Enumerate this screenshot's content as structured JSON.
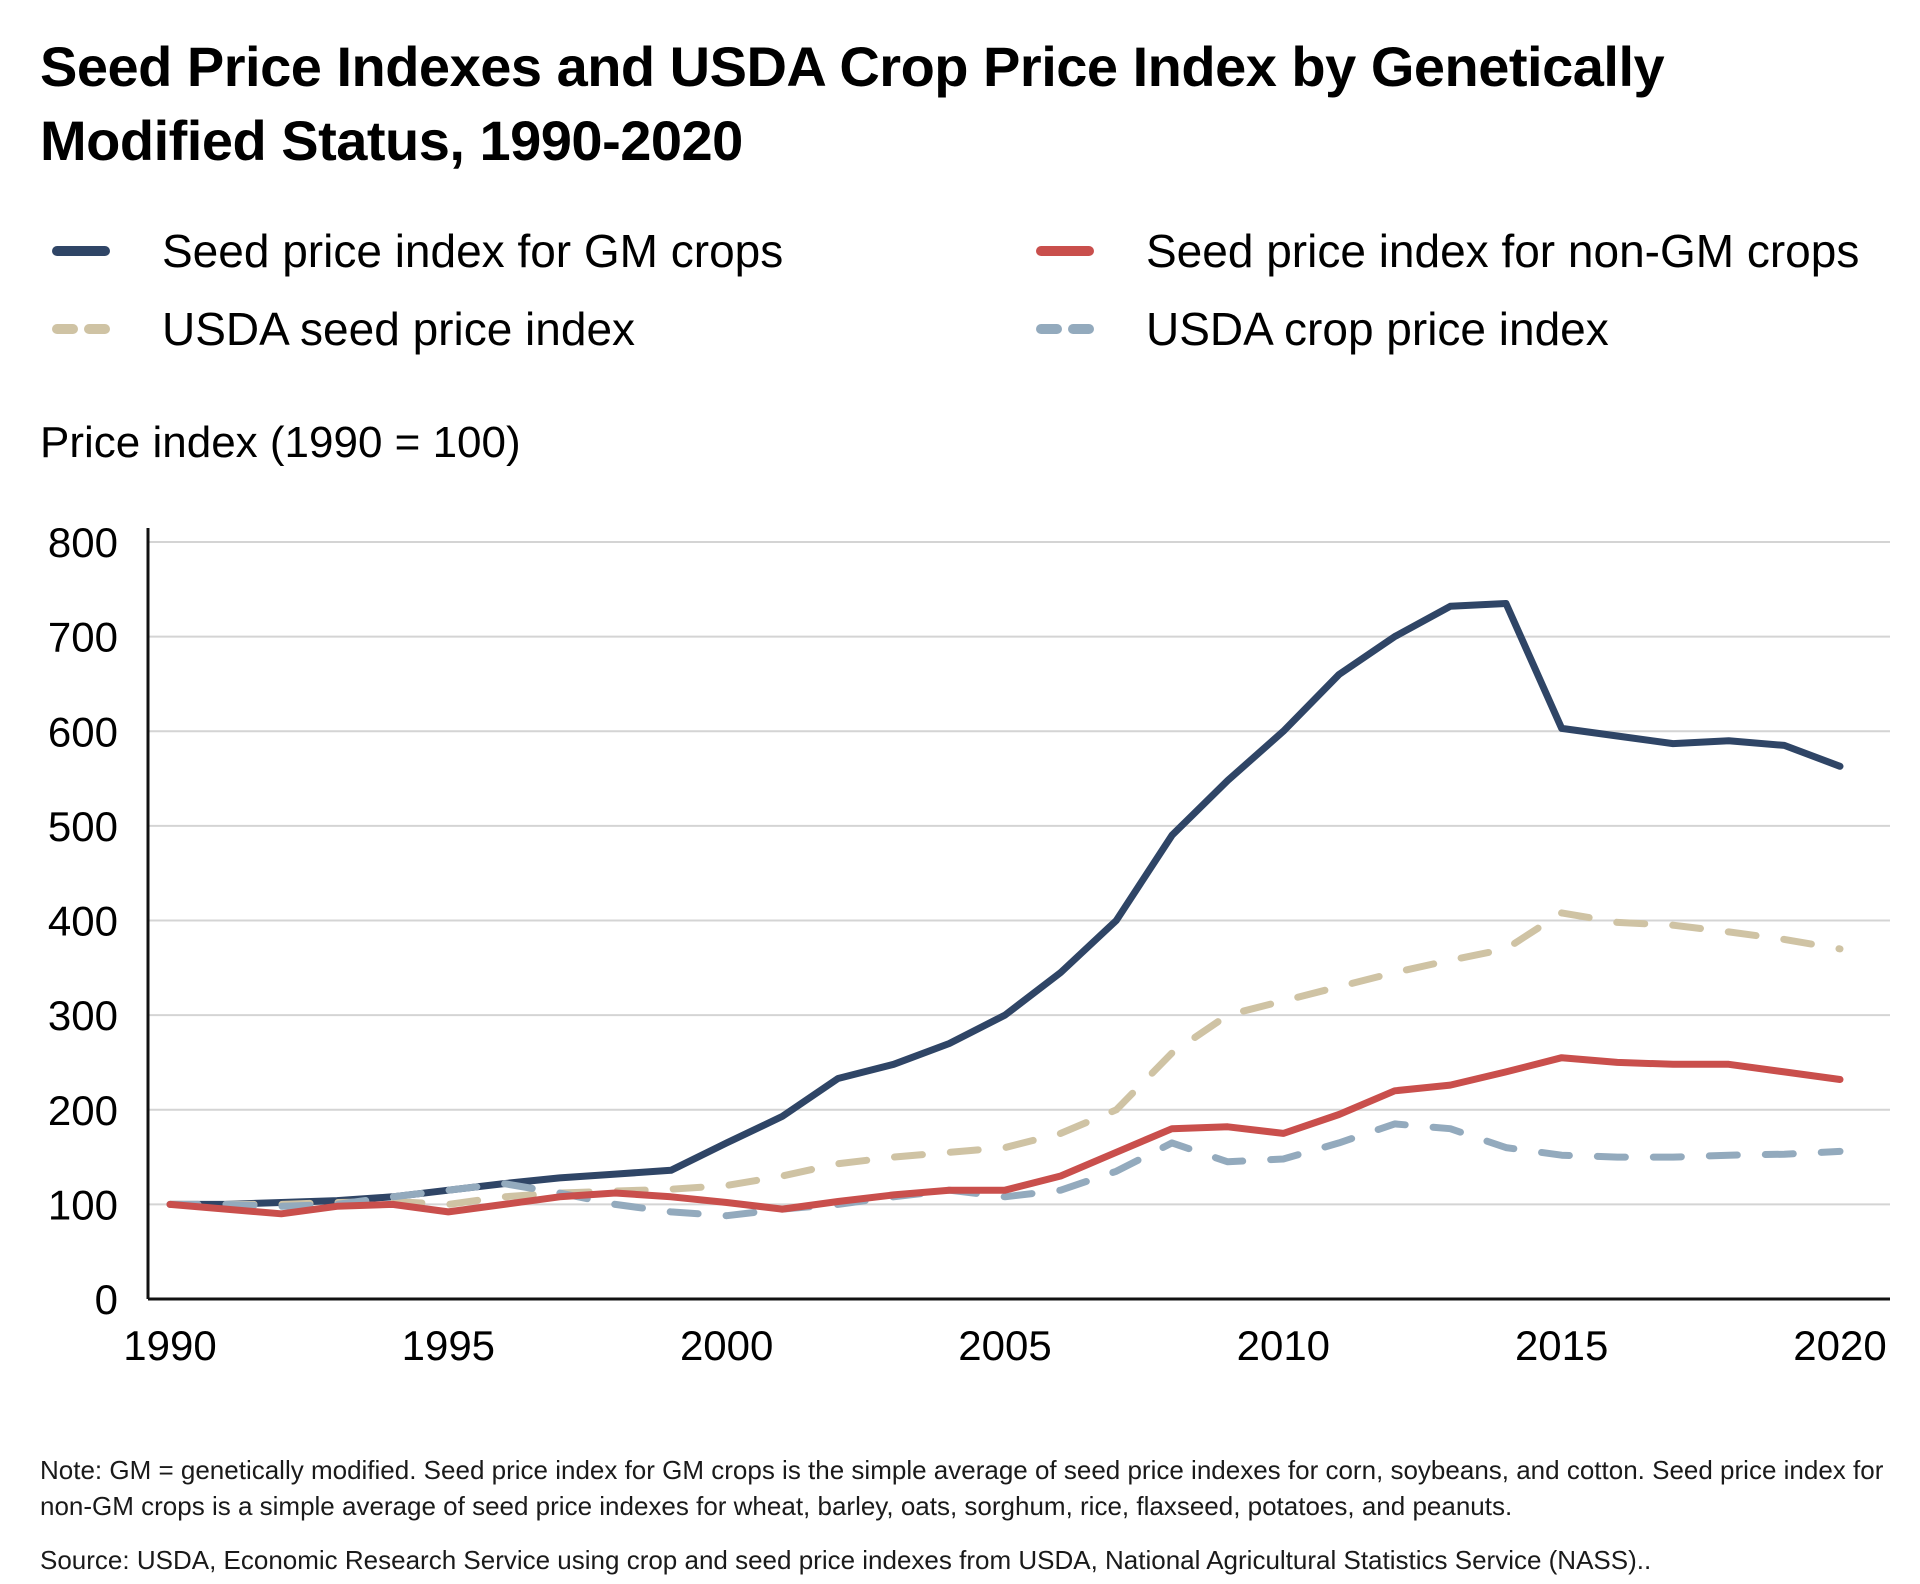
{
  "title": "Seed Price Indexes and USDA Crop Price Index by Genetically Modified Status, 1990-2020",
  "legend": [
    {
      "label": "Seed price index for GM crops",
      "color": "#2f4566",
      "style": "solid"
    },
    {
      "label": "Seed price index for non-GM crops",
      "color": "#c94f4c",
      "style": "solid"
    },
    {
      "label": "USDA seed price index",
      "color": "#cfc3a4",
      "style": "dashed"
    },
    {
      "label": "USDA crop price index",
      "color": "#93aabd",
      "style": "dashed"
    }
  ],
  "note": "Note: GM = genetically modified. Seed price index for GM crops is the simple average of seed price indexes for corn, soybeans, and cotton. Seed price index for non-GM crops is a simple average of seed price indexes for wheat, barley, oats, sorghum, rice, flaxseed, potatoes, and peanuts.",
  "source": "Source: USDA, Economic Research Service using crop and seed price indexes from USDA, National Agricultural Statistics Service (NASS)..",
  "chart_data": {
    "type": "line",
    "title": "Seed Price Indexes and USDA Crop Price Index by Genetically Modified Status, 1990-2020",
    "xlabel": "",
    "ylabel": "Price index (1990 = 100)",
    "x": [
      1990,
      1991,
      1992,
      1993,
      1994,
      1995,
      1996,
      1997,
      1998,
      1999,
      2000,
      2001,
      2002,
      2003,
      2004,
      2005,
      2006,
      2007,
      2008,
      2009,
      2010,
      2011,
      2012,
      2013,
      2014,
      2015,
      2016,
      2017,
      2018,
      2019,
      2020
    ],
    "xticks": [
      "1990",
      "1995",
      "2000",
      "2005",
      "2010",
      "2015",
      "2020"
    ],
    "xtick_values": [
      1990,
      1995,
      2000,
      2005,
      2010,
      2015,
      2020
    ],
    "yticks": [
      "0",
      "100",
      "200",
      "300",
      "400",
      "500",
      "600",
      "700",
      "800"
    ],
    "ytick_values": [
      0,
      100,
      200,
      300,
      400,
      500,
      600,
      700,
      800
    ],
    "xlim": [
      1990,
      2020
    ],
    "ylim": [
      0,
      800
    ],
    "grid": true,
    "legend_position": "top",
    "series": [
      {
        "name": "Seed price index for GM crops",
        "color": "#2f4566",
        "dashed": false,
        "values": [
          100,
          100,
          102,
          104,
          108,
          115,
          122,
          128,
          132,
          136,
          165,
          193,
          233,
          248,
          270,
          300,
          345,
          400,
          490,
          548,
          600,
          660,
          700,
          732,
          735,
          603,
          595,
          587,
          590,
          585,
          563
        ]
      },
      {
        "name": "USDA seed price index",
        "color": "#cfc3a4",
        "dashed": true,
        "values": [
          100,
          100,
          100,
          102,
          103,
          100,
          108,
          112,
          114,
          116,
          120,
          130,
          143,
          150,
          155,
          160,
          175,
          200,
          260,
          300,
          315,
          330,
          345,
          358,
          370,
          408,
          398,
          395,
          388,
          380,
          370
        ]
      },
      {
        "name": "USDA crop price index",
        "color": "#93aabd",
        "dashed": true,
        "values": [
          100,
          100,
          98,
          100,
          108,
          115,
          122,
          112,
          100,
          92,
          88,
          95,
          100,
          108,
          115,
          108,
          115,
          135,
          165,
          145,
          148,
          165,
          185,
          180,
          160,
          152,
          150,
          150,
          152,
          153,
          156
        ]
      },
      {
        "name": "Seed price index for non-GM crops",
        "color": "#c94f4c",
        "dashed": false,
        "values": [
          100,
          95,
          90,
          98,
          100,
          92,
          100,
          108,
          112,
          108,
          102,
          95,
          103,
          110,
          115,
          115,
          130,
          155,
          180,
          182,
          175,
          195,
          220,
          226,
          240,
          255,
          250,
          248,
          248,
          240,
          232
        ]
      }
    ]
  }
}
